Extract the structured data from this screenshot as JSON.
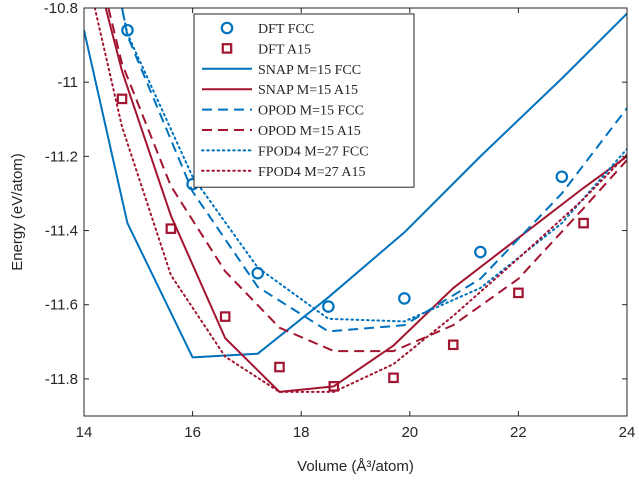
{
  "chart_data": {
    "type": "line",
    "title": "",
    "xlabel": "Volume (Å³/atom)",
    "ylabel": "Energy (eV/atom)",
    "xlim": [
      14,
      24
    ],
    "ylim": [
      -11.9,
      -10.8
    ],
    "xticks": [
      14,
      16,
      18,
      20,
      22,
      24
    ],
    "xtick_labels": [
      "14",
      "16",
      "18",
      "20",
      "22",
      "24"
    ],
    "yticks": [
      -10.8,
      -11.0,
      -11.2,
      -11.4,
      -11.6,
      -11.8
    ],
    "ytick_labels": [
      "-10.8",
      "-11",
      "-11.2",
      "-11.4",
      "-11.6",
      "-11.8"
    ],
    "grid": false,
    "legend_position": "top-center",
    "series": [
      {
        "name": "DFT FCC",
        "kind": "markers",
        "marker": "circle",
        "color": "#0072BD",
        "x": [
          14.8,
          16.0,
          17.2,
          18.5,
          19.9,
          21.3,
          22.8
        ],
        "y": [
          -10.86,
          -11.275,
          -11.515,
          -11.605,
          -11.583,
          -11.458,
          -11.255
        ]
      },
      {
        "name": "DFT A15",
        "kind": "markers",
        "marker": "square",
        "color": "#A2142F",
        "x": [
          14.7,
          15.6,
          16.6,
          17.6,
          18.6,
          19.7,
          20.8,
          22.0,
          23.2
        ],
        "y": [
          -11.045,
          -11.395,
          -11.632,
          -11.768,
          -11.82,
          -11.797,
          -11.708,
          -11.568,
          -11.38
        ]
      },
      {
        "name": "SNAP M=15 FCC",
        "kind": "line",
        "dash": "solid",
        "color": "#0072BD",
        "x": [
          14.0,
          14.8,
          16.0,
          17.2,
          18.5,
          19.9,
          21.3,
          22.8,
          24.0
        ],
        "y": [
          -10.86,
          -11.38,
          -11.742,
          -11.732,
          -11.58,
          -11.405,
          -11.2,
          -10.99,
          -10.815
        ]
      },
      {
        "name": "SNAP M=15 A15",
        "kind": "line",
        "dash": "solid",
        "color": "#A2142F",
        "x": [
          14.4,
          14.7,
          15.6,
          16.6,
          17.6,
          18.6,
          19.7,
          20.8,
          22.0,
          23.2,
          24.0
        ],
        "y": [
          -10.8,
          -10.97,
          -11.36,
          -11.69,
          -11.835,
          -11.82,
          -11.71,
          -11.555,
          -11.42,
          -11.285,
          -11.2
        ]
      },
      {
        "name": "OPOD M=15 FCC",
        "kind": "line",
        "dash": "dash",
        "color": "#0072BD",
        "x": [
          14.7,
          14.8,
          16.0,
          17.2,
          18.5,
          19.9,
          21.3,
          22.8,
          24.0
        ],
        "y": [
          -10.8,
          -10.875,
          -11.295,
          -11.552,
          -11.672,
          -11.655,
          -11.53,
          -11.3,
          -11.07
        ]
      },
      {
        "name": "OPOD M=15 A15",
        "kind": "line",
        "dash": "dash",
        "color": "#A2142F",
        "x": [
          14.45,
          14.7,
          15.6,
          16.6,
          17.6,
          18.6,
          19.7,
          20.8,
          22.0,
          23.2,
          24.0
        ],
        "y": [
          -10.8,
          -10.95,
          -11.28,
          -11.51,
          -11.662,
          -11.725,
          -11.725,
          -11.655,
          -11.53,
          -11.34,
          -11.21
        ]
      },
      {
        "name": "FPOD4 M=27 FCC",
        "kind": "line",
        "dash": "dot",
        "color": "#0072BD",
        "x": [
          14.7,
          14.8,
          16.0,
          17.2,
          18.5,
          19.9,
          21.3,
          22.8,
          24.0
        ],
        "y": [
          -10.8,
          -10.87,
          -11.255,
          -11.5,
          -11.638,
          -11.645,
          -11.555,
          -11.38,
          -11.18
        ]
      },
      {
        "name": "FPOD4 M=27 A15",
        "kind": "line",
        "dash": "dot",
        "color": "#A2142F",
        "x": [
          14.2,
          14.7,
          15.6,
          16.6,
          17.6,
          18.6,
          19.7,
          20.8,
          22.0,
          23.2,
          24.0
        ],
        "y": [
          -10.8,
          -11.12,
          -11.52,
          -11.74,
          -11.835,
          -11.835,
          -11.76,
          -11.63,
          -11.475,
          -11.315,
          -11.195
        ]
      }
    ]
  }
}
